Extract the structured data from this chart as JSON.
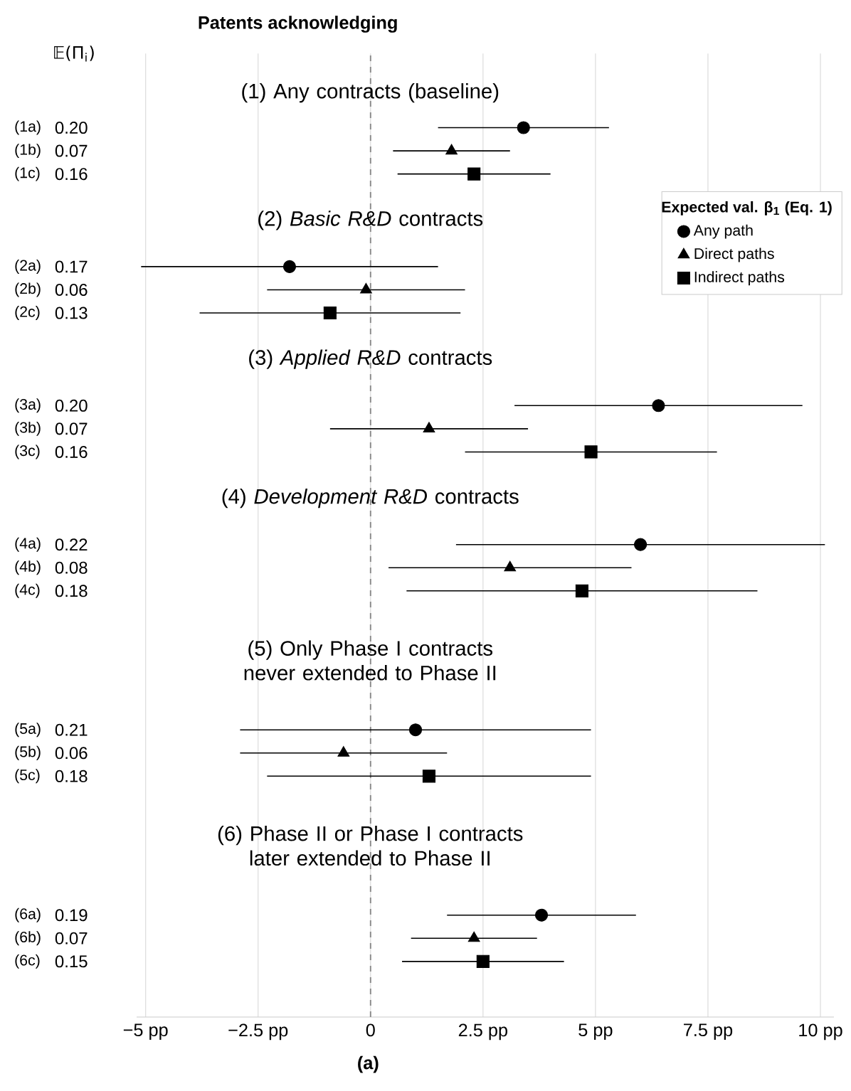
{
  "chart_data": {
    "type": "scatter",
    "orientation": "horizontal",
    "title": "Patents acknowledging",
    "ylabel": "𝔼(Π$_{i}$)",
    "xlabel": "(a)",
    "legend_title": "Expected val. β$_{1}$ (Eq. 1)",
    "legend": "top right",
    "grid": "x",
    "categories": [
      null,
      null,
      "(1a)",
      "(1b)",
      "(1c)",
      null,
      null,
      null,
      "(2a)",
      "(2b)",
      "(2c)",
      null,
      null,
      null,
      "(3a)",
      "(3b)",
      "(3c)",
      null,
      null,
      null,
      "(4a)",
      "(4b)",
      "(4c)",
      null,
      null,
      null,
      null,
      null,
      "(5a)",
      "(5b)",
      "(5c)",
      null,
      null,
      null,
      null,
      null,
      "(6a)",
      "(6b)",
      "(6c)"
    ],
    "xlim": [
      -5.2,
      10.3
    ],
    "xticks": [
      {
        "value": -5,
        "label": "−5 pp"
      },
      {
        "value": -2.5,
        "label": "−2.5 pp"
      },
      0,
      {
        "value": 2.5,
        "label": "2.5 pp"
      },
      {
        "value": 5,
        "label": "5 pp"
      },
      {
        "value": 7.5,
        "label": "7.5 pp"
      },
      {
        "value": 10,
        "label": "10 pp"
      }
    ],
    "ref_lines": [
      {
        "axis": "x",
        "value": 0,
        "color": "#888888",
        "line_style": "dashed"
      }
    ],
    "series": [
      {
        "name": "Any path",
        "color": "#000000",
        "marker": "circle",
        "values": [
          null,
          null,
          3.4,
          null,
          null,
          null,
          null,
          null,
          -1.8,
          null,
          null,
          null,
          null,
          null,
          6.4,
          null,
          null,
          null,
          null,
          null,
          6.0,
          null,
          null,
          null,
          null,
          null,
          null,
          null,
          1.0,
          null,
          null,
          null,
          null,
          null,
          null,
          null,
          3.8,
          null,
          null
        ],
        "errors": [
          null,
          null,
          1.9,
          null,
          null,
          null,
          null,
          null,
          3.3,
          null,
          null,
          null,
          null,
          null,
          3.2,
          null,
          null,
          null,
          null,
          null,
          4.1,
          null,
          null,
          null,
          null,
          null,
          null,
          null,
          3.9,
          null,
          null,
          null,
          null,
          null,
          null,
          null,
          2.1,
          null,
          null
        ]
      },
      {
        "name": "Direct paths",
        "color": "#000000",
        "marker": "triangle",
        "values": [
          null,
          null,
          null,
          1.8,
          null,
          null,
          null,
          null,
          null,
          -0.1,
          null,
          null,
          null,
          null,
          null,
          1.3,
          null,
          null,
          null,
          null,
          null,
          3.1,
          null,
          null,
          null,
          null,
          null,
          null,
          null,
          -0.6,
          null,
          null,
          null,
          null,
          null,
          null,
          null,
          2.3,
          null
        ],
        "errors": [
          null,
          null,
          null,
          1.3,
          null,
          null,
          null,
          null,
          null,
          2.2,
          null,
          null,
          null,
          null,
          null,
          2.2,
          null,
          null,
          null,
          null,
          null,
          2.7,
          null,
          null,
          null,
          null,
          null,
          null,
          null,
          2.3,
          null,
          null,
          null,
          null,
          null,
          null,
          null,
          1.4,
          null
        ]
      },
      {
        "name": "Indirect paths",
        "color": "#000000",
        "marker": "square",
        "values": [
          null,
          null,
          null,
          null,
          2.3,
          null,
          null,
          null,
          null,
          null,
          -0.9,
          null,
          null,
          null,
          null,
          null,
          4.9,
          null,
          null,
          null,
          null,
          null,
          4.7,
          null,
          null,
          null,
          null,
          null,
          null,
          null,
          1.3,
          null,
          null,
          null,
          null,
          null,
          null,
          null,
          2.5
        ],
        "errors": [
          null,
          null,
          null,
          null,
          1.7,
          null,
          null,
          null,
          null,
          null,
          2.9,
          null,
          null,
          null,
          null,
          null,
          2.8,
          null,
          null,
          null,
          null,
          null,
          3.9,
          null,
          null,
          null,
          null,
          null,
          null,
          null,
          3.6,
          null,
          null,
          null,
          null,
          null,
          null,
          null,
          1.8
        ]
      }
    ],
    "annotations": [
      "(1) Any contracts (baseline)",
      "(2) *Basic R&D* contracts",
      "(3) *Applied R&D* contracts",
      "(4) *Development R&D* contracts",
      "(5) Only Phase I contracts never extended to Phase II",
      "(6) Phase II or Phase I contracts later extended to Phase II",
      "0.20",
      "0.07",
      "0.16",
      "0.17",
      "0.06",
      "0.13",
      "0.20",
      "0.07",
      "0.16",
      "0.22",
      "0.08",
      "0.18",
      "0.21",
      "0.06",
      "0.18",
      "0.19",
      "0.07",
      "0.15"
    ]
  }
}
